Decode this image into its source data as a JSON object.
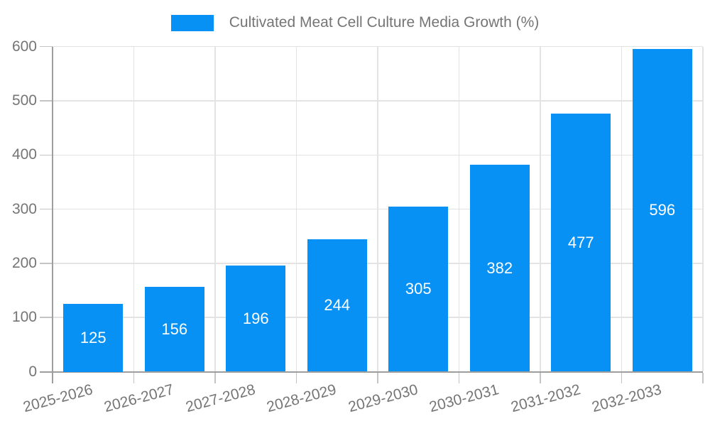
{
  "chart_data": {
    "type": "bar",
    "title": "Cultivated Meat Cell Culture Media Growth (%)",
    "legend": {
      "label": "Cultivated Meat Cell Culture Media Growth (%)",
      "position": "top-center"
    },
    "categories": [
      "2025-2026",
      "2026-2027",
      "2027-2028",
      "2028-2029",
      "2029-2030",
      "2030-2031",
      "2031-2032",
      "2032-2033"
    ],
    "values": [
      125,
      156,
      196,
      244,
      305,
      382,
      477,
      596
    ],
    "value_labels_shown_inside_bars": true,
    "xlabel": "",
    "ylabel": "",
    "ylim": [
      0,
      600
    ],
    "ytick_step": 100,
    "ytick_labels": [
      "0",
      "100",
      "200",
      "300",
      "400",
      "500",
      "600"
    ],
    "grid": "both",
    "x_label_rotation_deg": -15,
    "colors": {
      "bar": "#0891f5",
      "value_label": "#ffffff",
      "tick_text": "#757575",
      "legend_text": "#757575",
      "gridline": "#e3e3e3",
      "axis": "#9e9e9e",
      "tick_mark": "#c4c4c4",
      "background": "#ffffff"
    }
  }
}
